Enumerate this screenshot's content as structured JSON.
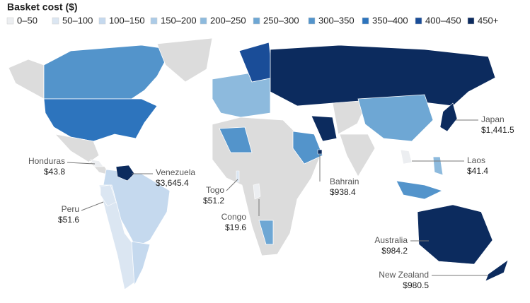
{
  "chart_data": {
    "type": "choropleth",
    "legend": {
      "title": "Basket cost ($)",
      "items": [
        {
          "label": "0–50",
          "color": "#eceef1"
        },
        {
          "label": "50–100",
          "color": "#dbe6f2"
        },
        {
          "label": "100–150",
          "color": "#c5d9ee"
        },
        {
          "label": "150–200",
          "color": "#accbe7"
        },
        {
          "label": "200–250",
          "color": "#8dbadd"
        },
        {
          "label": "250–300",
          "color": "#6ea7d4"
        },
        {
          "label": "300–350",
          "color": "#5394cb"
        },
        {
          "label": "350–400",
          "color": "#2d74bd"
        },
        {
          "label": "400–450",
          "color": "#1a4d98"
        },
        {
          "label": "450+",
          "color": "#0c2b5e"
        }
      ]
    },
    "regions": {
      "names": [
        "Honduras",
        "Venezuela",
        "Peru",
        "Togo",
        "Congo",
        "Bahrain",
        "Japan",
        "Laos",
        "Australia",
        "New Zealand"
      ],
      "values": [
        43.8,
        3645.4,
        51.6,
        51.2,
        19.6,
        938.4,
        1441.5,
        41.4,
        984.2,
        980.5
      ],
      "value_labels": [
        "$43.8",
        "$3,645.4",
        "$51.6",
        "$51.2",
        "$19.6",
        "$938.4",
        "$1,441.5",
        "$41.4",
        "$984.2",
        "$980.5"
      ],
      "colors": [
        "#eceef1",
        "#0c2b5e",
        "#dbe6f2",
        "#dbe6f2",
        "#eceef1",
        "#0c2b5e",
        "#0c2b5e",
        "#eceef1",
        "#0c2b5e",
        "#0c2b5e"
      ]
    }
  }
}
